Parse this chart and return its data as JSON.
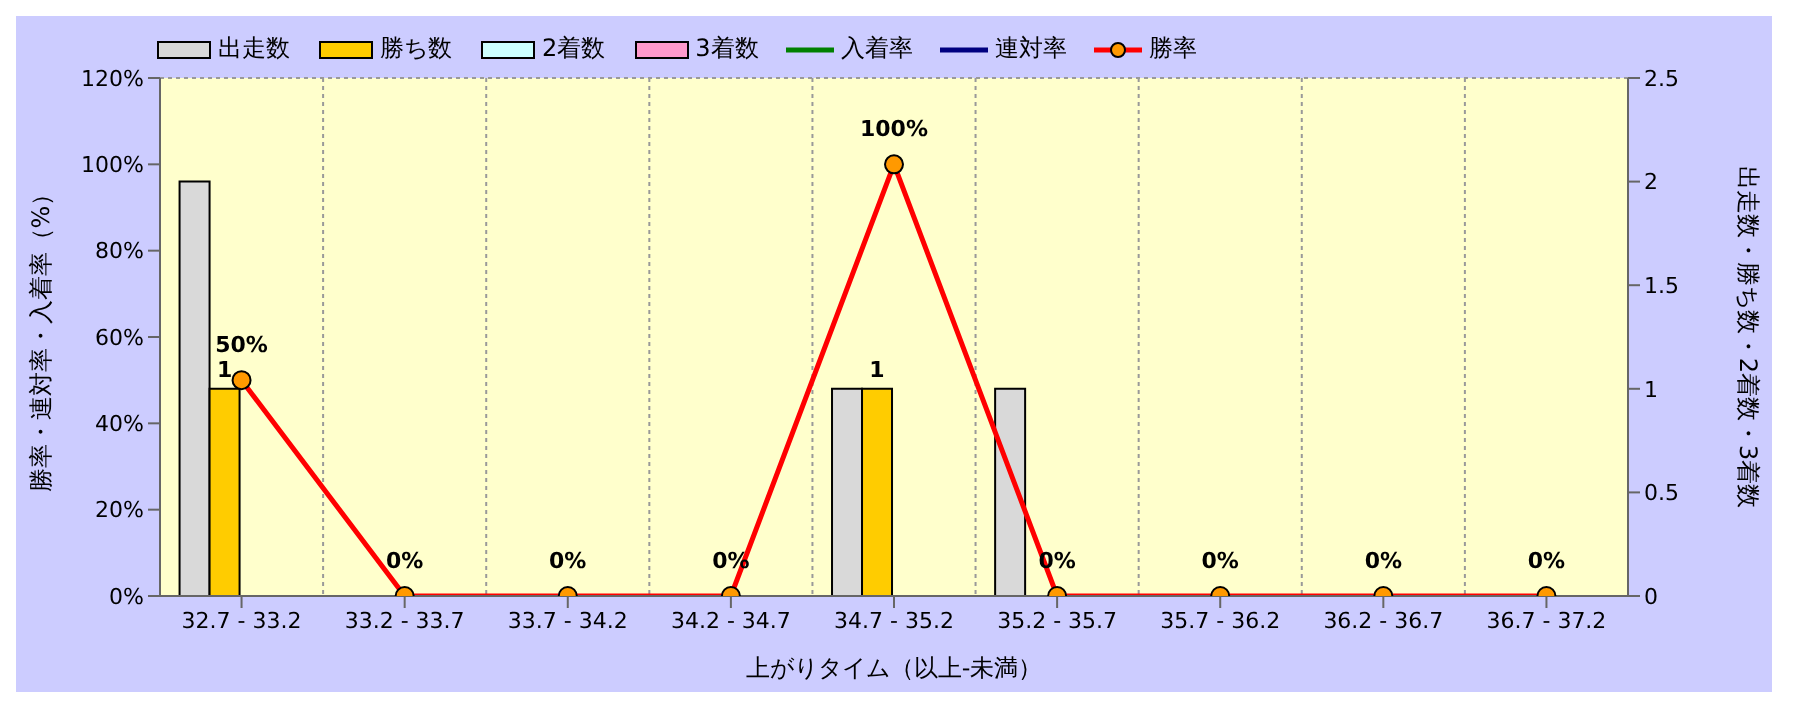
{
  "chart_data": {
    "type": "bar",
    "categories": [
      "32.7 - 33.2",
      "33.2 - 33.7",
      "33.7 - 34.2",
      "34.2 - 34.7",
      "34.7 - 35.2",
      "35.2 - 35.7",
      "35.7 - 36.2",
      "36.2 - 36.7",
      "36.7 - 37.2"
    ],
    "xlabel": "上がりタイム（以上-未満）",
    "ylabel": "勝率・連対率・入着率（%）",
    "y2label": "出走数・勝ち数・2着数・3着数",
    "series": [
      {
        "name": "出走数",
        "color": "#d9d9d9",
        "axis": "y2",
        "values": [
          2,
          0,
          0,
          0,
          1,
          1,
          0,
          0,
          0
        ]
      },
      {
        "name": "勝ち数",
        "color": "#ffcc00",
        "axis": "y2",
        "values": [
          1,
          0,
          0,
          0,
          1,
          0,
          0,
          0,
          0
        ],
        "value_labels": [
          "1",
          null,
          null,
          null,
          "1",
          null,
          null,
          null,
          null
        ]
      },
      {
        "name": "2着数",
        "color": "#ccffff",
        "axis": "y2",
        "values": [
          0,
          0,
          0,
          0,
          0,
          0,
          0,
          0,
          0
        ]
      },
      {
        "name": "3着数",
        "color": "#ff99cc",
        "axis": "y2",
        "values": [
          0,
          0,
          0,
          0,
          0,
          0,
          0,
          0,
          0
        ]
      },
      {
        "name": "入着率",
        "type": "line",
        "color": "#008000",
        "values": [
          null,
          null,
          null,
          null,
          null,
          null,
          null,
          null,
          null
        ]
      },
      {
        "name": "連対率",
        "type": "line",
        "color": "#000080",
        "values": [
          null,
          null,
          null,
          null,
          null,
          null,
          null,
          null,
          null
        ]
      },
      {
        "name": "勝率",
        "type": "line",
        "color": "#ff0000",
        "marker": "circle",
        "values": [
          50,
          0,
          0,
          0,
          100,
          0,
          0,
          0,
          0
        ],
        "value_labels": [
          "50%",
          "0%",
          "0%",
          "0%",
          "100%",
          "0%",
          "0%",
          "0%",
          "0%"
        ]
      }
    ],
    "ylim": [
      0,
      120
    ],
    "yticks": [
      {
        "value": 0,
        "label": "0%"
      },
      {
        "value": 20,
        "label": "20%"
      },
      {
        "value": 40,
        "label": "40%"
      },
      {
        "value": 60,
        "label": "60%"
      },
      {
        "value": 80,
        "label": "80%"
      },
      {
        "value": 100,
        "label": "100%"
      },
      {
        "value": 120,
        "label": "120%"
      }
    ],
    "y2lim": [
      0,
      2.5
    ],
    "y2ticks": [
      0,
      0.5,
      1,
      1.5,
      2,
      2.5
    ],
    "grid": true,
    "legend": "top left"
  }
}
